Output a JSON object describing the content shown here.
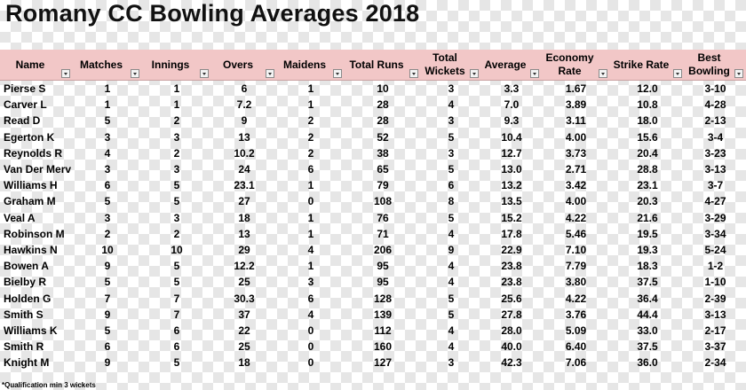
{
  "title": "Romany CC Bowling Averages 2018",
  "header_color": "#f2c7c7",
  "columns": [
    "Name",
    "Matches",
    "Innings",
    "Overs",
    "Maidens",
    "Total Runs",
    "Total Wickets",
    "Average",
    "Economy Rate",
    "Strike Rate",
    "Best Bowling"
  ],
  "rows": [
    [
      "Pierse S",
      "1",
      "1",
      "6",
      "1",
      "10",
      "3",
      "3.3",
      "1.67",
      "12.0",
      "3-10"
    ],
    [
      "Carver L",
      "1",
      "1",
      "7.2",
      "1",
      "28",
      "4",
      "7.0",
      "3.89",
      "10.8",
      "4-28"
    ],
    [
      "Read D",
      "5",
      "2",
      "9",
      "2",
      "28",
      "3",
      "9.3",
      "3.11",
      "18.0",
      "2-13"
    ],
    [
      "Egerton K",
      "3",
      "3",
      "13",
      "2",
      "52",
      "5",
      "10.4",
      "4.00",
      "15.6",
      "3-4"
    ],
    [
      "Reynolds R",
      "4",
      "2",
      "10.2",
      "2",
      "38",
      "3",
      "12.7",
      "3.73",
      "20.4",
      "3-23"
    ],
    [
      "Van Der Merv",
      "3",
      "3",
      "24",
      "6",
      "65",
      "5",
      "13.0",
      "2.71",
      "28.8",
      "3-13"
    ],
    [
      "Williams H",
      "6",
      "5",
      "23.1",
      "1",
      "79",
      "6",
      "13.2",
      "3.42",
      "23.1",
      "3-7"
    ],
    [
      "Graham M",
      "5",
      "5",
      "27",
      "0",
      "108",
      "8",
      "13.5",
      "4.00",
      "20.3",
      "4-27"
    ],
    [
      "Veal A",
      "3",
      "3",
      "18",
      "1",
      "76",
      "5",
      "15.2",
      "4.22",
      "21.6",
      "3-29"
    ],
    [
      "Robinson M",
      "2",
      "2",
      "13",
      "1",
      "71",
      "4",
      "17.8",
      "5.46",
      "19.5",
      "3-34"
    ],
    [
      "Hawkins N",
      "10",
      "10",
      "29",
      "4",
      "206",
      "9",
      "22.9",
      "7.10",
      "19.3",
      "5-24"
    ],
    [
      "Bowen A",
      "9",
      "5",
      "12.2",
      "1",
      "95",
      "4",
      "23.8",
      "7.79",
      "18.3",
      "1-2"
    ],
    [
      "Bielby R",
      "5",
      "5",
      "25",
      "3",
      "95",
      "4",
      "23.8",
      "3.80",
      "37.5",
      "1-10"
    ],
    [
      "Holden G",
      "7",
      "7",
      "30.3",
      "6",
      "128",
      "5",
      "25.6",
      "4.22",
      "36.4",
      "2-39"
    ],
    [
      "Smith S",
      "9",
      "7",
      "37",
      "4",
      "139",
      "5",
      "27.8",
      "3.76",
      "44.4",
      "3-13"
    ],
    [
      "Williams K",
      "5",
      "6",
      "22",
      "0",
      "112",
      "4",
      "28.0",
      "5.09",
      "33.0",
      "2-17"
    ],
    [
      "Smith R",
      "6",
      "6",
      "25",
      "0",
      "160",
      "4",
      "40.0",
      "6.40",
      "37.5",
      "3-37"
    ],
    [
      "Knight M",
      "9",
      "5",
      "18",
      "0",
      "127",
      "3",
      "42.3",
      "7.06",
      "36.0",
      "2-34"
    ]
  ],
  "footnote": "*Qualification min 3 wickets"
}
